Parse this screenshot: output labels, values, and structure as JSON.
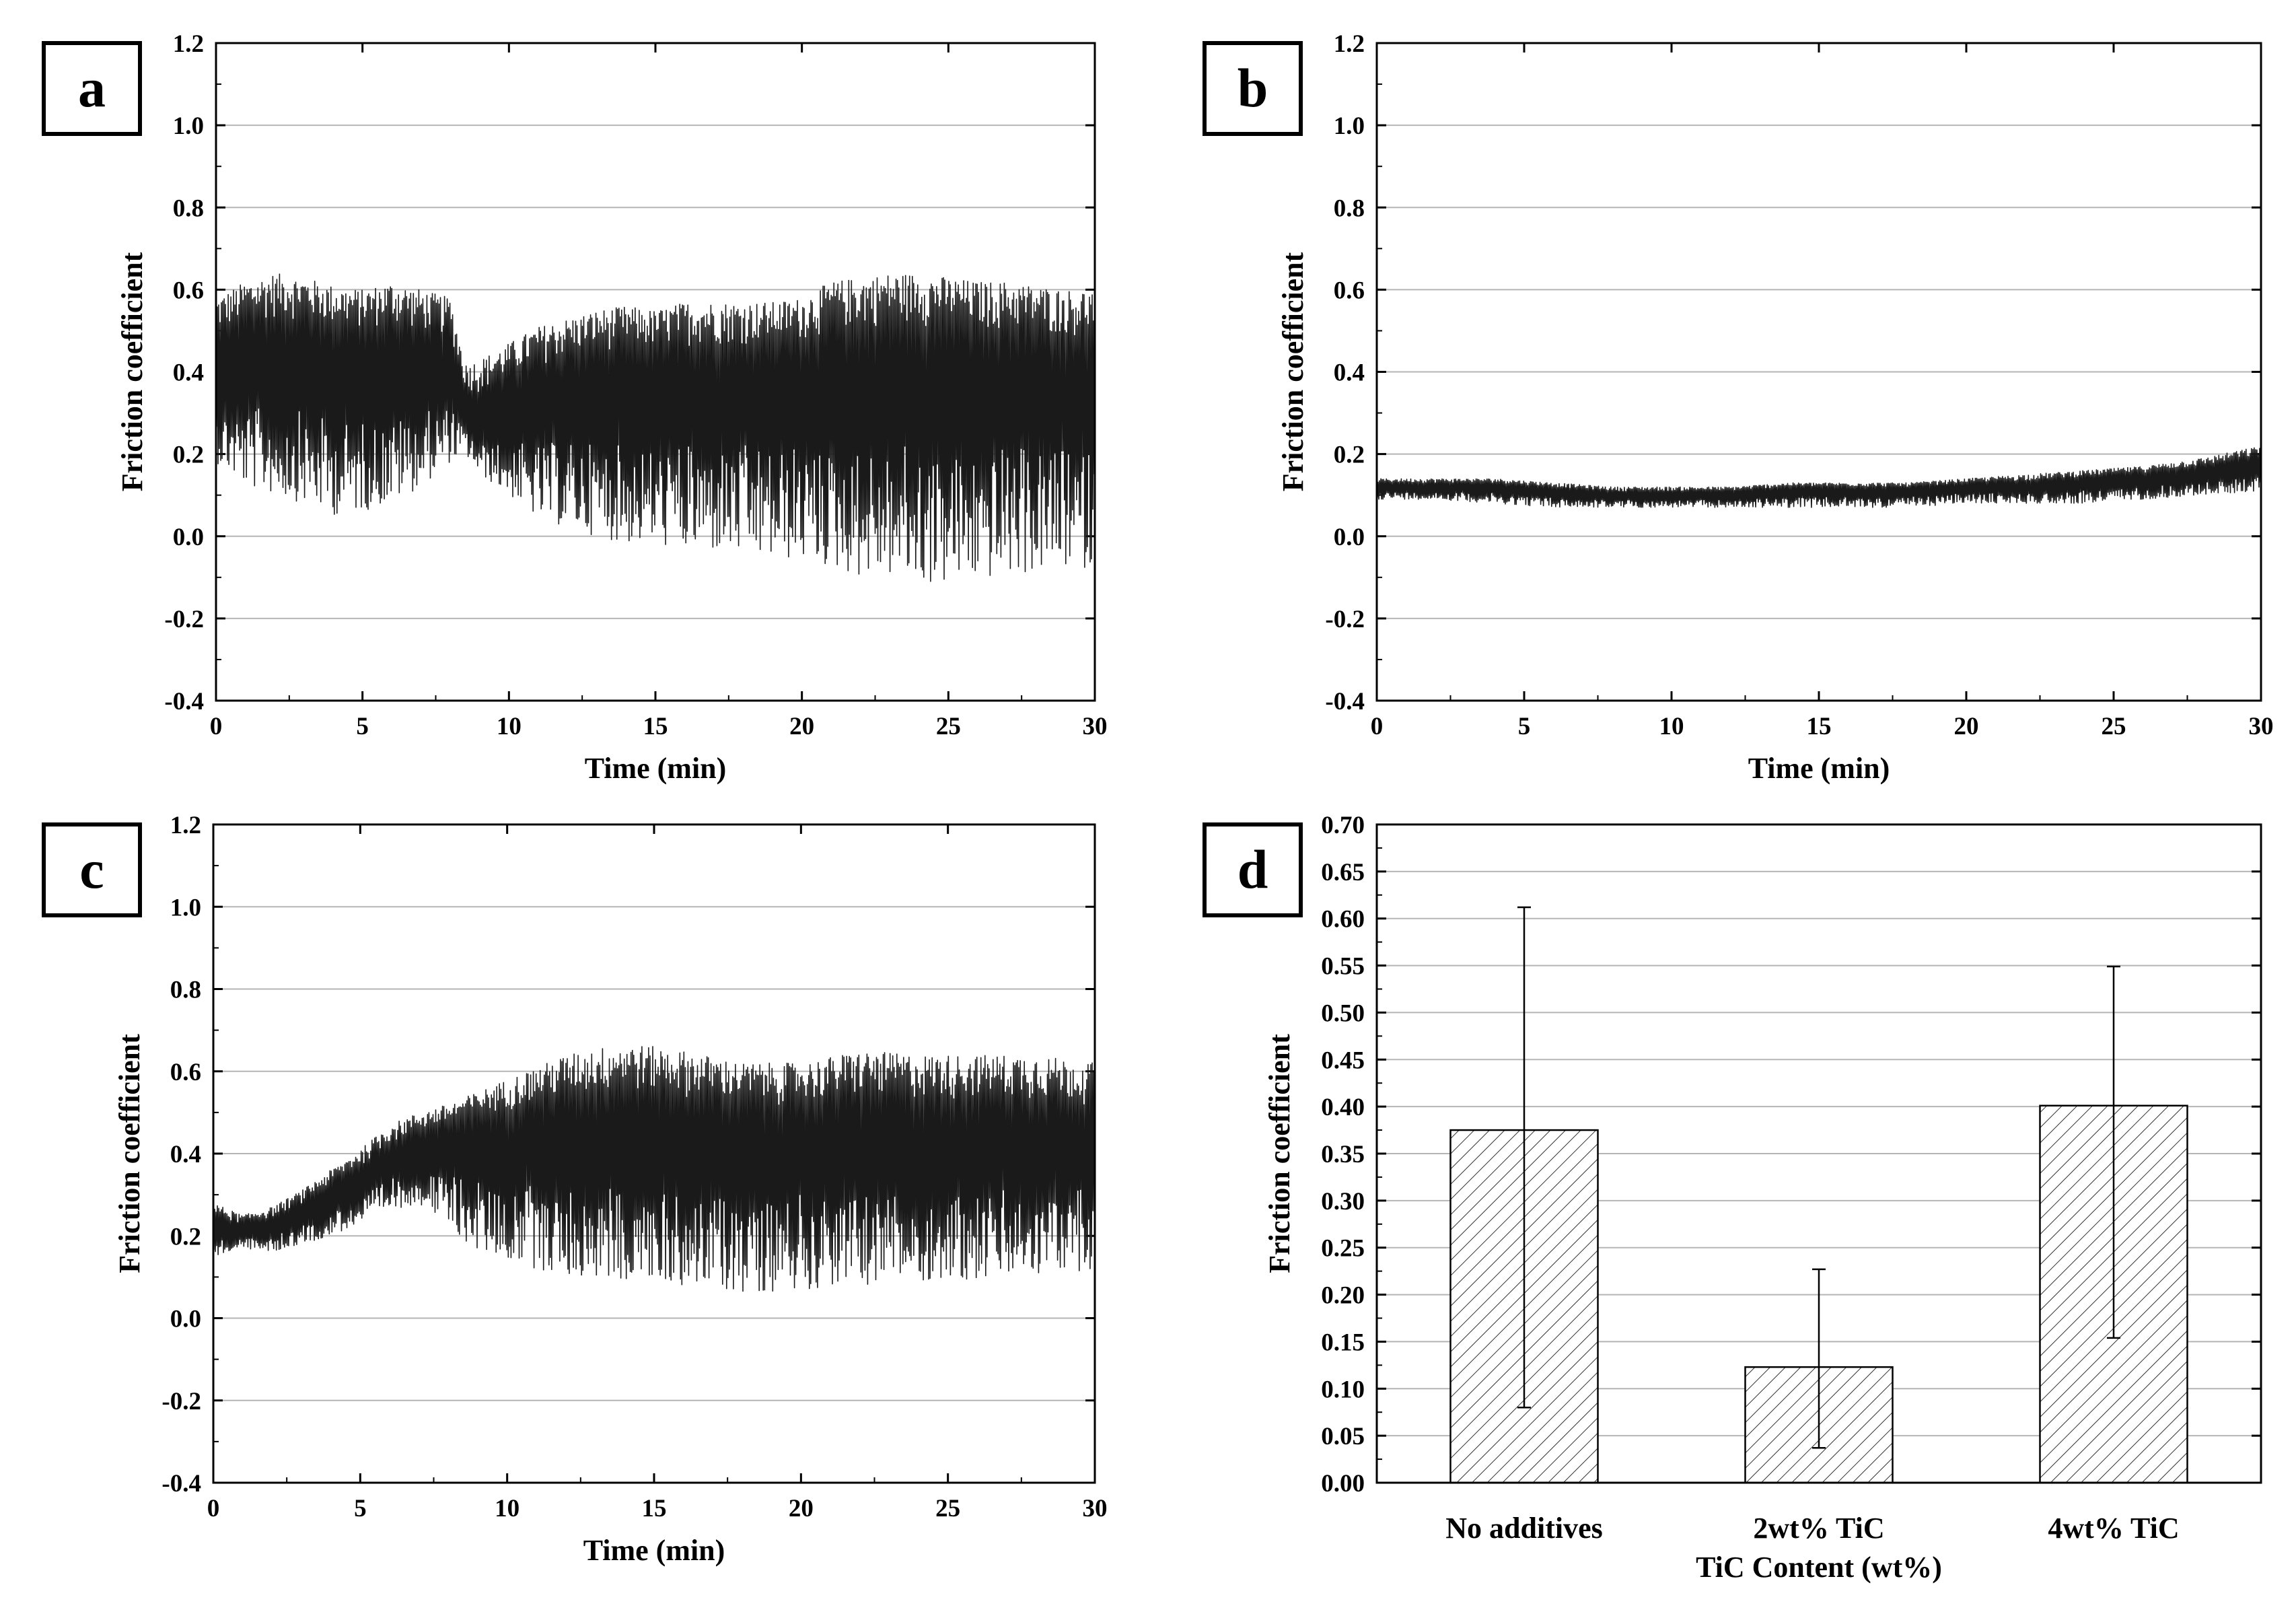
{
  "chart_data": [
    {
      "type": "line",
      "panel": "a",
      "xlabel": "Time (min)",
      "ylabel": "Friction coefficient",
      "xlim": [
        0,
        30
      ],
      "ylim": [
        -0.4,
        1.2
      ],
      "x_ticks": [
        "0",
        "5",
        "10",
        "15",
        "20",
        "25",
        "30"
      ],
      "y_ticks": [
        "-0.4",
        "-0.2",
        "0.0",
        "0.2",
        "0.4",
        "0.6",
        "0.8",
        "1.0",
        "1.2"
      ],
      "grid": true,
      "series": [
        {
          "name": "No additives",
          "x": [
            0,
            1,
            2,
            3,
            4,
            5,
            6,
            7,
            8,
            8.5,
            9,
            10,
            11,
            12,
            13,
            14,
            15,
            16,
            17,
            18,
            19,
            20,
            21,
            22,
            23,
            24,
            25,
            26,
            27,
            28,
            29,
            30
          ],
          "mean": [
            0.4,
            0.42,
            0.43,
            0.43,
            0.41,
            0.41,
            0.41,
            0.4,
            0.4,
            0.3,
            0.27,
            0.3,
            0.33,
            0.35,
            0.36,
            0.36,
            0.36,
            0.37,
            0.37,
            0.37,
            0.37,
            0.38,
            0.38,
            0.39,
            0.4,
            0.4,
            0.4,
            0.39,
            0.39,
            0.38,
            0.38,
            0.38
          ],
          "upper": [
            0.58,
            0.62,
            0.64,
            0.63,
            0.61,
            0.6,
            0.62,
            0.6,
            0.58,
            0.42,
            0.43,
            0.47,
            0.51,
            0.53,
            0.55,
            0.56,
            0.55,
            0.57,
            0.57,
            0.57,
            0.57,
            0.58,
            0.62,
            0.63,
            0.64,
            0.64,
            0.63,
            0.62,
            0.62,
            0.61,
            0.6,
            0.6
          ],
          "lower": [
            0.18,
            0.12,
            0.1,
            0.08,
            0.05,
            0.06,
            0.08,
            0.12,
            0.18,
            0.2,
            0.15,
            0.1,
            0.04,
            0.02,
            0.0,
            -0.02,
            -0.02,
            -0.04,
            -0.04,
            -0.05,
            -0.06,
            -0.06,
            -0.08,
            -0.1,
            -0.1,
            -0.12,
            -0.12,
            -0.11,
            -0.1,
            -0.09,
            -0.08,
            -0.08
          ]
        }
      ]
    },
    {
      "type": "line",
      "panel": "b",
      "xlabel": "Time (min)",
      "ylabel": "Friction coefficient",
      "xlim": [
        0,
        30
      ],
      "ylim": [
        -0.4,
        1.2
      ],
      "x_ticks": [
        "0",
        "5",
        "10",
        "15",
        "20",
        "25",
        "30"
      ],
      "y_ticks": [
        "-0.4",
        "-0.2",
        "0.0",
        "0.2",
        "0.4",
        "0.6",
        "0.8",
        "1.0",
        "1.2"
      ],
      "grid": true,
      "series": [
        {
          "name": "2wt% TiC",
          "x": [
            0,
            2,
            4,
            6,
            8,
            10,
            12,
            14,
            16,
            18,
            20,
            22,
            24,
            26,
            28,
            30
          ],
          "mean": [
            0.12,
            0.12,
            0.12,
            0.11,
            0.1,
            0.1,
            0.1,
            0.11,
            0.11,
            0.11,
            0.12,
            0.12,
            0.13,
            0.14,
            0.15,
            0.17
          ],
          "upper": [
            0.14,
            0.14,
            0.14,
            0.13,
            0.12,
            0.12,
            0.12,
            0.13,
            0.13,
            0.13,
            0.14,
            0.15,
            0.16,
            0.17,
            0.19,
            0.22
          ],
          "lower": [
            0.09,
            0.09,
            0.08,
            0.07,
            0.07,
            0.07,
            0.07,
            0.07,
            0.07,
            0.07,
            0.08,
            0.08,
            0.08,
            0.09,
            0.1,
            0.11
          ]
        }
      ]
    },
    {
      "type": "line",
      "panel": "c",
      "xlabel": "Time (min)",
      "ylabel": "Friction coefficient",
      "xlim": [
        0,
        30
      ],
      "ylim": [
        -0.4,
        1.2
      ],
      "x_ticks": [
        "0",
        "5",
        "10",
        "15",
        "20",
        "25",
        "30"
      ],
      "y_ticks": [
        "-0.4",
        "-0.2",
        "0.0",
        "0.2",
        "0.4",
        "0.6",
        "0.8",
        "1.0",
        "1.2"
      ],
      "grid": true,
      "series": [
        {
          "name": "4wt% TiC",
          "x": [
            0,
            1,
            2,
            3,
            4,
            5,
            6,
            7,
            8,
            9,
            10,
            12,
            14,
            16,
            18,
            20,
            22,
            24,
            26,
            28,
            30
          ],
          "mean": [
            0.21,
            0.21,
            0.22,
            0.25,
            0.29,
            0.33,
            0.38,
            0.41,
            0.42,
            0.43,
            0.44,
            0.44,
            0.44,
            0.44,
            0.43,
            0.43,
            0.43,
            0.43,
            0.43,
            0.43,
            0.42
          ],
          "upper": [
            0.28,
            0.25,
            0.27,
            0.31,
            0.36,
            0.41,
            0.47,
            0.5,
            0.52,
            0.55,
            0.58,
            0.64,
            0.67,
            0.65,
            0.62,
            0.62,
            0.65,
            0.64,
            0.64,
            0.64,
            0.62
          ],
          "lower": [
            0.15,
            0.17,
            0.16,
            0.18,
            0.2,
            0.23,
            0.26,
            0.28,
            0.22,
            0.16,
            0.14,
            0.1,
            0.09,
            0.08,
            0.06,
            0.07,
            0.08,
            0.09,
            0.09,
            0.1,
            0.12
          ]
        }
      ]
    },
    {
      "type": "bar",
      "panel": "d",
      "xlabel": "TiC Content (wt%)",
      "ylabel": "Friction coefficient",
      "ylim": [
        0.0,
        0.7
      ],
      "y_ticks": [
        "0.00",
        "0.05",
        "0.10",
        "0.15",
        "0.20",
        "0.25",
        "0.30",
        "0.35",
        "0.40",
        "0.45",
        "0.50",
        "0.55",
        "0.60",
        "0.65",
        "0.70"
      ],
      "categories": [
        "No additives",
        "2wt% TiC",
        "4wt% TiC"
      ],
      "values": [
        0.375,
        0.123,
        0.401
      ],
      "error_low": [
        0.08,
        0.037,
        0.154
      ],
      "error_high": [
        0.612,
        0.227,
        0.549
      ],
      "grid": true,
      "pattern": "diagonal-hatch"
    }
  ],
  "panel_labels": [
    "a",
    "b",
    "c",
    "d"
  ]
}
